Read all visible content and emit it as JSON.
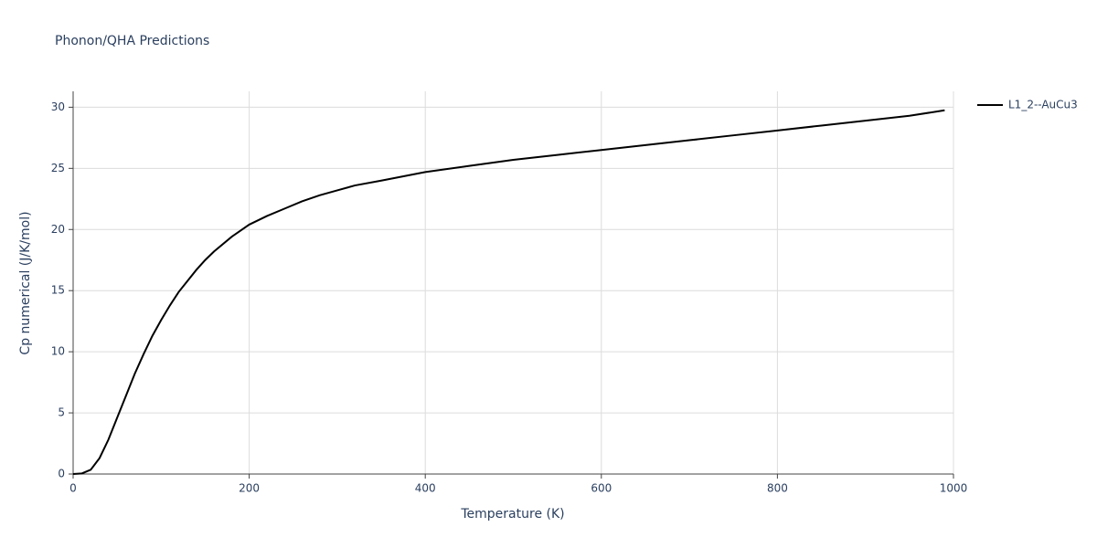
{
  "chart_data": {
    "type": "line",
    "title": "Phonon/QHA Predictions",
    "x_label": "Temperature (K)",
    "y_label": "Cp numerical (J/K/mol)",
    "x": [
      0,
      10,
      20,
      30,
      40,
      50,
      60,
      70,
      80,
      90,
      100,
      110,
      120,
      130,
      140,
      150,
      160,
      180,
      200,
      220,
      240,
      260,
      280,
      300,
      320,
      350,
      400,
      450,
      500,
      550,
      600,
      650,
      700,
      750,
      800,
      850,
      900,
      950,
      990
    ],
    "series": [
      {
        "name": "L1_2--AuCu3",
        "color": "#000000",
        "values": [
          0,
          0.05,
          0.35,
          1.3,
          2.8,
          4.6,
          6.4,
          8.2,
          9.8,
          11.3,
          12.6,
          13.8,
          14.9,
          15.8,
          16.7,
          17.5,
          18.2,
          19.4,
          20.4,
          21.1,
          21.7,
          22.3,
          22.8,
          23.2,
          23.6,
          24.0,
          24.7,
          25.2,
          25.7,
          26.1,
          26.5,
          26.9,
          27.3,
          27.7,
          28.1,
          28.5,
          28.9,
          29.3,
          29.75
        ]
      }
    ],
    "xlim": [
      0,
      1000
    ],
    "xticks": [
      0,
      200,
      400,
      600,
      800,
      1000
    ],
    "ylim": [
      0,
      31.3
    ],
    "yticks": [
      0,
      5,
      10,
      15,
      20,
      25,
      30
    ],
    "grid": true,
    "legend": "right"
  }
}
